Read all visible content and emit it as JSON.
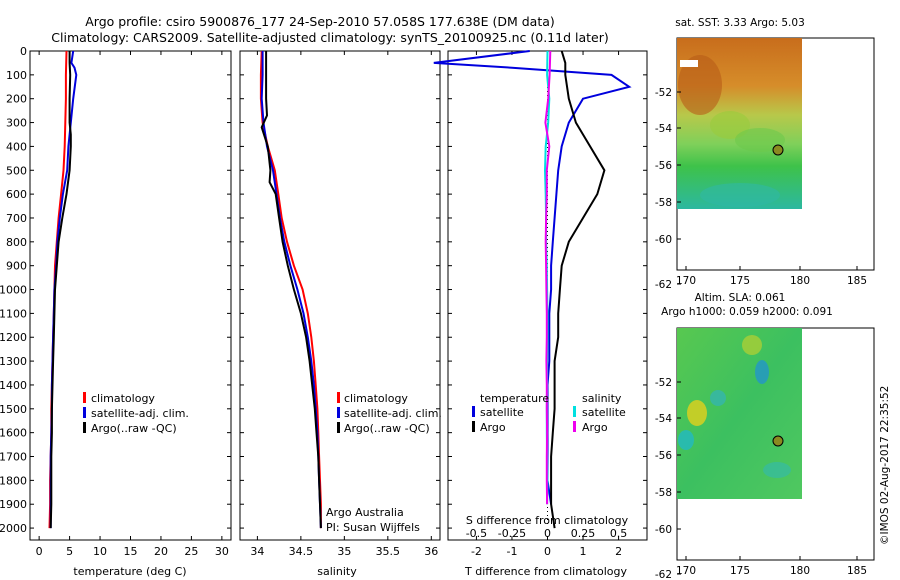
{
  "title_line1": "Argo profile: csiro 5900876_177 24-Sep-2010 57.058S 177.638E (DM data)",
  "title_line2": "Climatology: CARS2009. Satellite-adjusted climatology: synTS_20100925.nc (0.11d later)",
  "colors": {
    "climatology": "#ff0000",
    "satellite": "#0000dd",
    "argo": "#000000",
    "sal_satellite": "#00e0e0",
    "sal_argo": "#ee00ee"
  },
  "depth_ticks": [
    0,
    100,
    200,
    300,
    400,
    500,
    600,
    700,
    800,
    900,
    1000,
    1100,
    1200,
    1300,
    1400,
    1500,
    1600,
    1700,
    1800,
    1900,
    2000
  ],
  "legend": {
    "climatology": "climatology",
    "satellite_adj": "satellite-adj. clim.",
    "argo": "Argo(..raw -QC)",
    "temperature": "temperature",
    "salinity": "salinity",
    "satellite": "satellite",
    "argo_short": "Argo"
  },
  "credits": {
    "line1": "Argo Australia",
    "line2": "PI: Susan Wijffels"
  },
  "map_sst_title": "sat. SST: 3.33 Argo: 5.03",
  "map_sla_title1": "Altim. SLA: 0.061",
  "map_sla_title2": "Argo h1000: 0.059 h2000: 0.091",
  "map_lat_ticks": [
    "-52",
    "-54",
    "-56",
    "-58",
    "-60",
    "-62"
  ],
  "map_lon_ticks": [
    "170",
    "175",
    "180",
    "185"
  ],
  "watermark": "©IMOS 02-Aug-2017 22:35:52",
  "chart_data": [
    {
      "type": "line",
      "xlabel": "temperature (deg C)",
      "ylim": [
        2050,
        0
      ],
      "xlim": [
        -1.5,
        31.5
      ],
      "xticks": [
        0,
        5,
        10,
        15,
        20,
        25,
        30
      ],
      "xtick_labels": [
        "0",
        "5",
        "10",
        "15",
        "20",
        "25",
        "30"
      ],
      "series": [
        {
          "name": "climatology",
          "color": "#ff0000",
          "x": [
            4.5,
            4.4,
            4.4,
            4.3,
            4.2,
            4.0,
            3.6,
            3.2,
            2.9,
            2.6,
            2.5,
            2.4,
            2.3,
            2.2,
            2.1,
            2.0,
            2.0,
            1.9,
            1.8,
            1.8,
            1.7
          ],
          "y": [
            0,
            100,
            200,
            300,
            400,
            500,
            600,
            700,
            800,
            900,
            1000,
            1100,
            1200,
            1300,
            1400,
            1500,
            1600,
            1700,
            1800,
            1900,
            2000
          ]
        },
        {
          "name": "satellite-adj. clim.",
          "color": "#0000dd",
          "x": [
            5.6,
            5.3,
            5.8,
            6.1,
            5.6,
            5.2,
            4.8,
            4.6,
            3.9,
            3.4,
            3.0,
            2.8,
            2.5,
            2.4,
            2.3,
            2.2,
            2.1,
            2.1,
            2.0,
            1.9,
            1.9,
            1.9,
            1.9
          ],
          "y": [
            0,
            50,
            70,
            100,
            200,
            300,
            400,
            500,
            600,
            700,
            800,
            900,
            1000,
            1100,
            1200,
            1300,
            1400,
            1500,
            1600,
            1700,
            1800,
            1900,
            2000
          ]
        },
        {
          "name": "Argo(..raw -QC)",
          "color": "#000000",
          "x": [
            5.0,
            5.0,
            5.1,
            5.0,
            5.0,
            5.2,
            5.2,
            5.0,
            4.5,
            3.8,
            3.2,
            2.9,
            2.6,
            2.5,
            2.4,
            2.3,
            2.2,
            2.1,
            2.1,
            2.0,
            2.0,
            2.0,
            1.9
          ],
          "y": [
            0,
            50,
            100,
            200,
            300,
            350,
            400,
            500,
            600,
            700,
            800,
            900,
            1000,
            1100,
            1200,
            1300,
            1400,
            1500,
            1600,
            1700,
            1800,
            1900,
            2000
          ]
        }
      ]
    },
    {
      "type": "line",
      "xlabel": "salinity",
      "ylim": [
        2050,
        0
      ],
      "xlim": [
        33.8,
        36.1
      ],
      "xticks": [
        34,
        34.5,
        35,
        35.5,
        36
      ],
      "xtick_labels": [
        "34",
        "34.5",
        "35",
        "35.5",
        "36"
      ],
      "series": [
        {
          "name": "climatology",
          "color": "#ff0000",
          "x": [
            34.05,
            34.04,
            34.04,
            34.06,
            34.12,
            34.2,
            34.24,
            34.28,
            34.34,
            34.42,
            34.52,
            34.58,
            34.62,
            34.65,
            34.67,
            34.69,
            34.7,
            34.71,
            34.72,
            34.73,
            34.73
          ],
          "y": [
            0,
            100,
            200,
            300,
            400,
            500,
            600,
            700,
            800,
            900,
            1000,
            1100,
            1200,
            1300,
            1400,
            1500,
            1600,
            1700,
            1800,
            1900,
            2000
          ]
        },
        {
          "name": "satellite-adj. clim.",
          "color": "#0000dd",
          "x": [
            34.06,
            34.06,
            34.05,
            34.07,
            34.11,
            34.18,
            34.22,
            34.26,
            34.31,
            34.38,
            34.46,
            34.53,
            34.58,
            34.62,
            34.65,
            34.67,
            34.69,
            34.7,
            34.71,
            34.72,
            34.73
          ],
          "y": [
            0,
            100,
            200,
            300,
            400,
            500,
            600,
            700,
            800,
            900,
            1000,
            1100,
            1200,
            1300,
            1400,
            1500,
            1600,
            1700,
            1800,
            1900,
            2000
          ]
        },
        {
          "name": "Argo(..raw -QC)",
          "color": "#000000",
          "x": [
            34.1,
            34.1,
            34.1,
            34.11,
            34.05,
            34.12,
            34.15,
            34.14,
            34.21,
            34.25,
            34.29,
            34.35,
            34.42,
            34.5,
            34.56,
            34.6,
            34.63,
            34.66,
            34.68,
            34.7,
            34.71,
            34.72,
            34.73
          ],
          "y": [
            0,
            100,
            200,
            270,
            320,
            400,
            500,
            550,
            600,
            700,
            800,
            900,
            1000,
            1100,
            1200,
            1300,
            1400,
            1500,
            1600,
            1700,
            1800,
            1900,
            2000
          ]
        }
      ]
    },
    {
      "type": "line",
      "xlabel": "T difference from climatology",
      "xlabel_top": "S difference from climatology",
      "ylim": [
        2050,
        0
      ],
      "xlim": [
        -2.8,
        2.8
      ],
      "xticks": [
        -2,
        -1,
        0,
        1,
        2
      ],
      "xtick_labels": [
        "-2",
        "-1",
        "0",
        "1",
        "2"
      ],
      "xticks_s": [
        -0.5,
        -0.25,
        0,
        0.25,
        0.5
      ],
      "xtick_labels_s": [
        "-0.5",
        "-0.25",
        "0",
        "0.25",
        "0.5"
      ],
      "series": [
        {
          "name": "temperature satellite",
          "color": "#0000dd",
          "x": [
            -0.5,
            -3.2,
            -1.0,
            1.8,
            2.3,
            1.0,
            0.6,
            0.4,
            0.3,
            0.25,
            0.2,
            0.15,
            0.1,
            0.1,
            0.05,
            0.05,
            0.05,
            0.0,
            0.0,
            0.0,
            0.0,
            0.0,
            0.1
          ],
          "y": [
            0,
            50,
            70,
            100,
            150,
            200,
            300,
            400,
            500,
            600,
            700,
            800,
            900,
            1000,
            1100,
            1200,
            1300,
            1400,
            1500,
            1600,
            1700,
            1800,
            1900
          ]
        },
        {
          "name": "temperature Argo",
          "color": "#000000",
          "x": [
            0.4,
            0.5,
            0.5,
            0.6,
            0.8,
            1.0,
            1.2,
            1.6,
            1.4,
            1.0,
            0.6,
            0.4,
            0.35,
            0.3,
            0.3,
            0.2,
            0.2,
            0.2,
            0.15,
            0.1,
            0.1,
            0.1,
            0.2
          ],
          "y": [
            0,
            50,
            100,
            200,
            300,
            350,
            400,
            500,
            600,
            700,
            800,
            900,
            1000,
            1100,
            1200,
            1300,
            1400,
            1500,
            1600,
            1700,
            1800,
            1900,
            2000
          ]
        },
        {
          "name": "salinity satellite",
          "color": "#00e0e0",
          "x": [
            0.0,
            -0.01,
            0.05,
            0.02,
            -0.05,
            -0.07,
            -0.05,
            -0.04,
            -0.04,
            -0.02,
            -0.01,
            0.0,
            0.0,
            -0.01,
            -0.01,
            -0.02,
            -0.02,
            -0.01,
            0.0,
            -0.01
          ],
          "y": [
            0,
            100,
            200,
            300,
            400,
            500,
            600,
            700,
            800,
            900,
            1000,
            1100,
            1200,
            1300,
            1400,
            1500,
            1600,
            1700,
            1800,
            1900
          ]
        },
        {
          "name": "salinity Argo",
          "color": "#ee00ee",
          "x": [
            0.08,
            0.06,
            0.02,
            -0.06,
            0.05,
            -0.02,
            -0.02,
            -0.04,
            -0.05,
            -0.04,
            -0.03,
            -0.02,
            -0.02,
            -0.03,
            -0.02,
            -0.02,
            -0.01,
            -0.02,
            -0.02,
            -0.01
          ],
          "y": [
            0,
            100,
            200,
            300,
            400,
            500,
            600,
            700,
            800,
            900,
            1000,
            1100,
            1200,
            1300,
            1400,
            1500,
            1600,
            1700,
            1800,
            1900
          ]
        }
      ]
    }
  ]
}
